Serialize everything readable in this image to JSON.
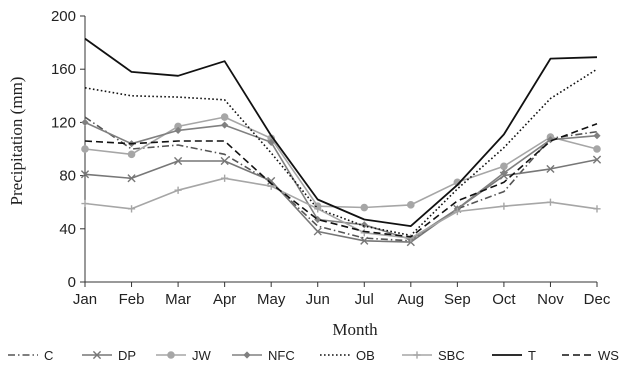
{
  "chart_data": {
    "type": "line",
    "title": "",
    "xlabel": "Month",
    "ylabel": "Precipitation (mm)",
    "ylim": [
      0,
      200
    ],
    "yticks": [
      "0",
      "40",
      "80",
      "120",
      "160",
      "200"
    ],
    "categories": [
      "Jan",
      "Feb",
      "Mar",
      "Apr",
      "May",
      "Jun",
      "Jul",
      "Aug",
      "Sep",
      "Oct",
      "Nov",
      "Dec"
    ],
    "grid": false,
    "legend_position": "bottom",
    "series": [
      {
        "name": "C",
        "color": "#555555",
        "dash": "dashdot",
        "marker": "none",
        "values": [
          124,
          100,
          103,
          96,
          75,
          42,
          33,
          31,
          55,
          68,
          108,
          113
        ]
      },
      {
        "name": "DP",
        "color": "#777777",
        "dash": "solid",
        "marker": "x",
        "values": [
          81,
          78,
          91,
          91,
          76,
          38,
          31,
          30,
          55,
          80,
          85,
          92
        ]
      },
      {
        "name": "JW",
        "color": "#a6a6a6",
        "dash": "solid",
        "marker": "circle",
        "values": [
          100,
          96,
          117,
          124,
          108,
          57,
          56,
          58,
          75,
          87,
          109,
          100
        ]
      },
      {
        "name": "NFC",
        "color": "#808080",
        "dash": "solid",
        "marker": "diamond",
        "values": [
          120,
          104,
          114,
          118,
          105,
          47,
          43,
          32,
          55,
          82,
          107,
          110
        ]
      },
      {
        "name": "OB",
        "color": "#111111",
        "dash": "dotted",
        "marker": "none",
        "values": [
          146,
          140,
          139,
          137,
          97,
          55,
          42,
          35,
          70,
          101,
          138,
          160
        ]
      },
      {
        "name": "SBC",
        "color": "#a6a6a6",
        "dash": "solid",
        "marker": "plus",
        "values": [
          59,
          55,
          69,
          78,
          72,
          55,
          37,
          33,
          53,
          57,
          60,
          55
        ]
      },
      {
        "name": "T",
        "color": "#111111",
        "dash": "solid",
        "marker": "none",
        "values": [
          183,
          158,
          155,
          166,
          110,
          62,
          47,
          42,
          73,
          111,
          168,
          169
        ]
      },
      {
        "name": "WS",
        "color": "#111111",
        "dash": "dashed",
        "marker": "none",
        "values": [
          106,
          104,
          106,
          106,
          74,
          47,
          38,
          34,
          61,
          75,
          106,
          119
        ]
      }
    ]
  }
}
